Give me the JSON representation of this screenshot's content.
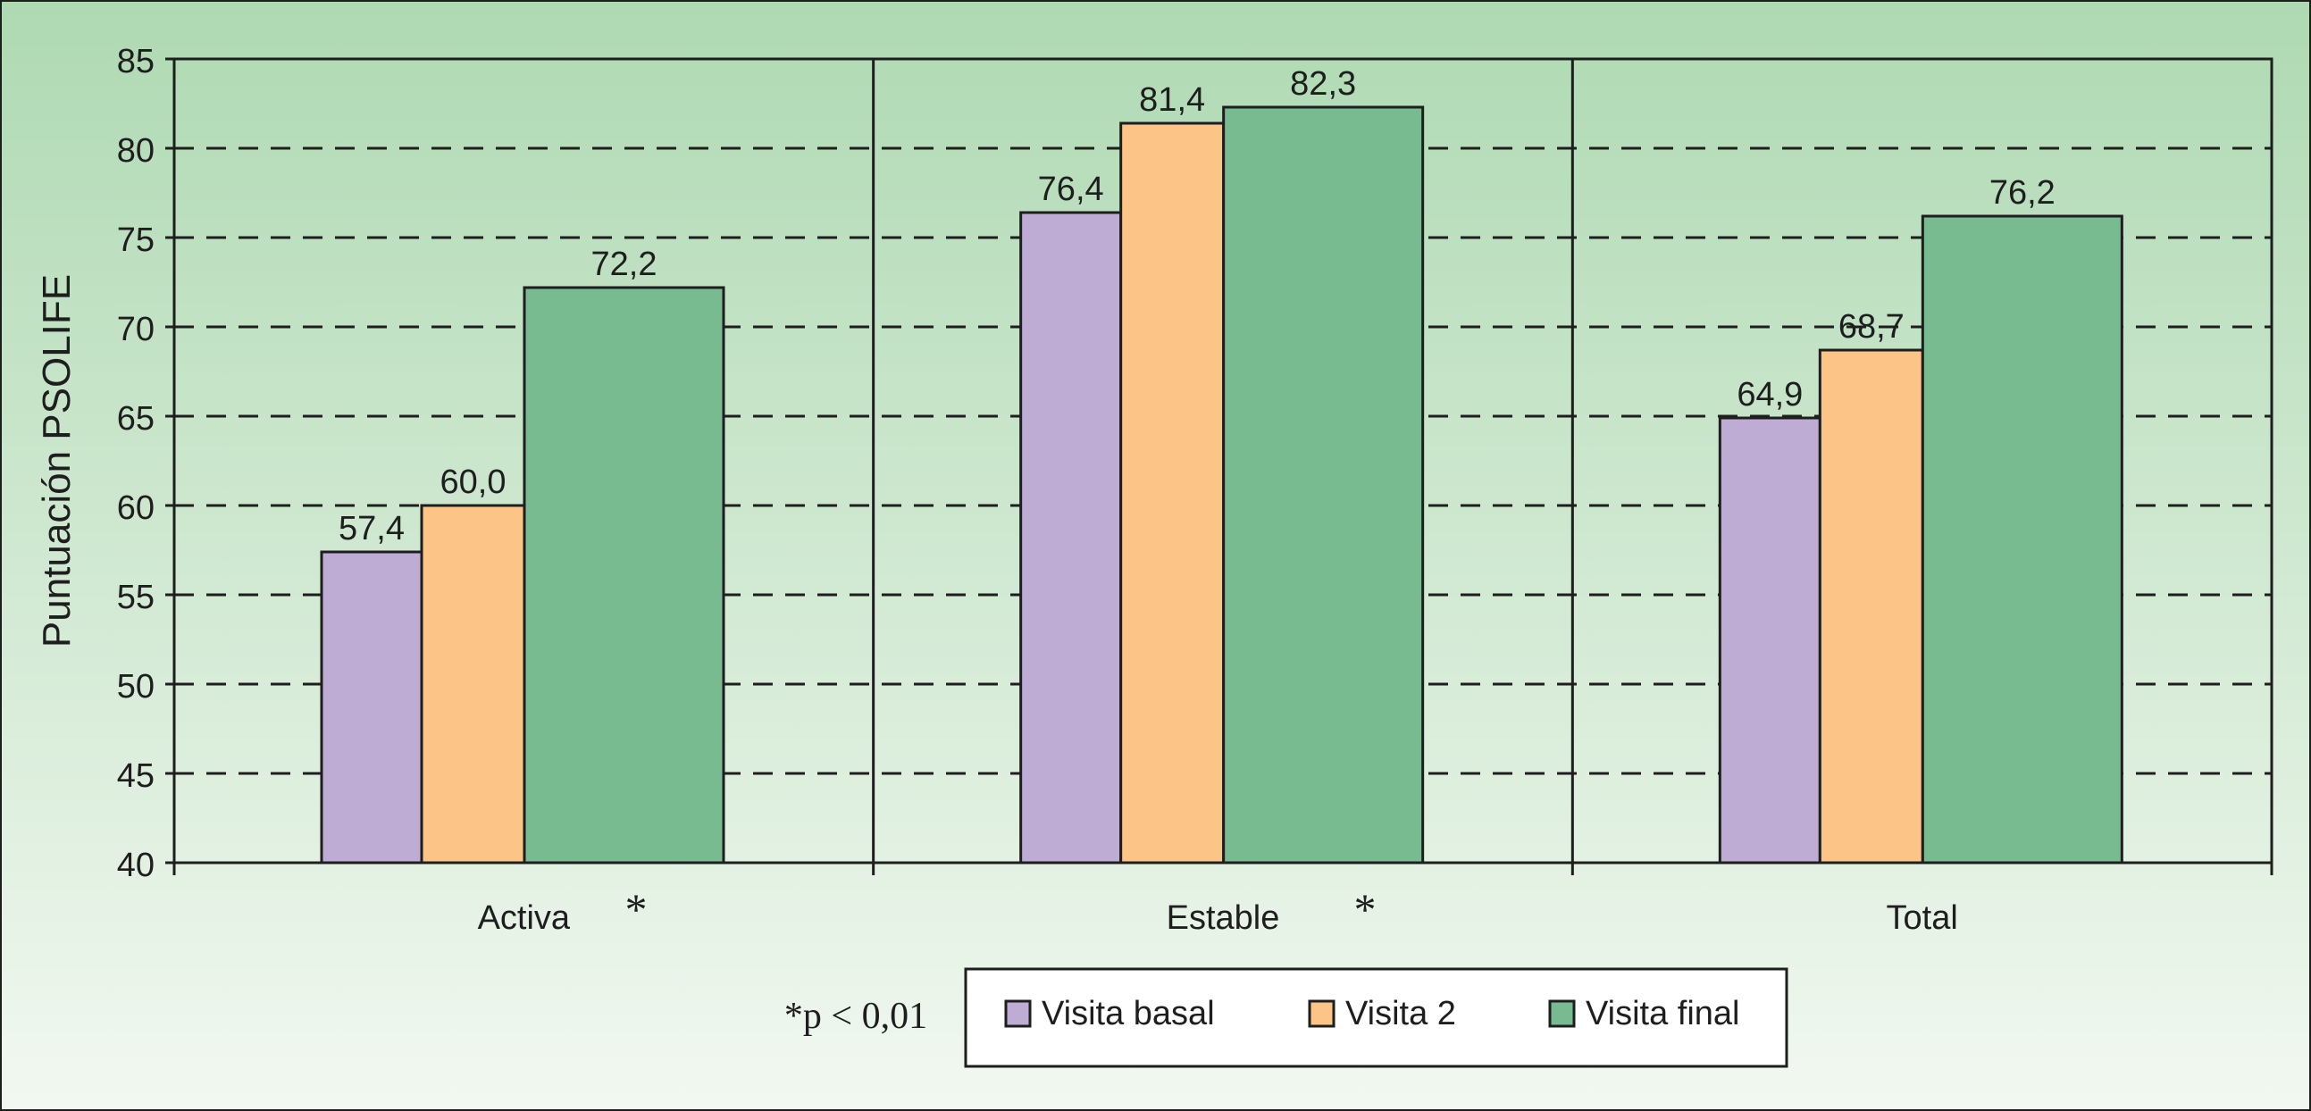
{
  "chart_data": {
    "type": "bar",
    "ylabel": "Puntuación PSOLIFE",
    "ylim": [
      40,
      85
    ],
    "yticks": [
      "40",
      "45",
      "50",
      "55",
      "60",
      "65",
      "70",
      "75",
      "80",
      "85"
    ],
    "grid": true,
    "categories": [
      "Activa",
      "Estable",
      "Total"
    ],
    "category_marks": [
      "*",
      "*",
      ""
    ],
    "series": [
      {
        "name": "Visita basal",
        "color": "#bfacd4",
        "values": [
          57.4,
          76.4,
          64.9
        ],
        "labels": [
          "57,4",
          "76,4",
          "64,9"
        ]
      },
      {
        "name": "Visita 2",
        "color": "#fcc587",
        "values": [
          60.0,
          81.4,
          68.7
        ],
        "labels": [
          "60,0",
          "81,4",
          "68,7"
        ]
      },
      {
        "name": "Visita final",
        "color": "#78bb91",
        "values": [
          72.2,
          82.3,
          76.2
        ],
        "labels": [
          "72,2",
          "82,3",
          "76,2"
        ]
      }
    ],
    "footnote": "*p < 0,01",
    "legend": "bottom-center"
  }
}
